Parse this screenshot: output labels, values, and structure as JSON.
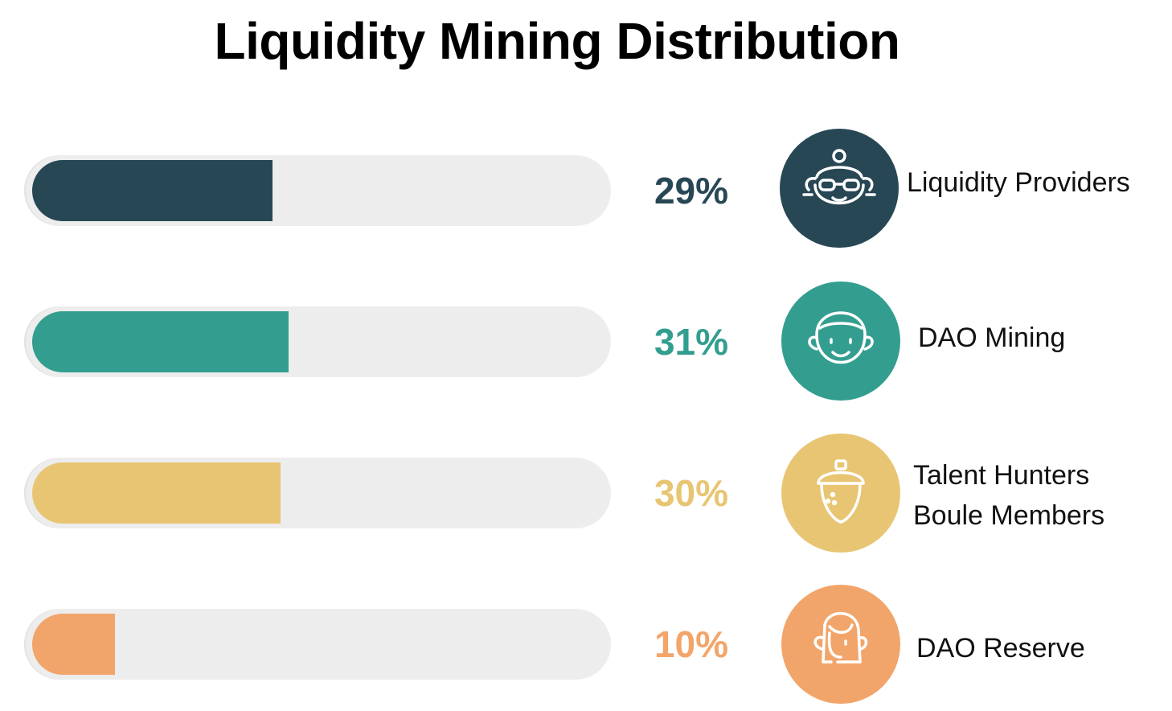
{
  "title": "Liquidity Mining Distribution",
  "chart_data": {
    "type": "bar",
    "title": "Liquidity Mining Distribution",
    "categories": [
      "Liquidity Providers",
      "DAO Mining",
      "Talent Hunters Boule Members",
      "DAO Reserve"
    ],
    "values": [
      29,
      31,
      30,
      10
    ],
    "unit": "%",
    "rows": [
      {
        "value": 29,
        "pct_label": "29%",
        "label_lines": [
          "Liquidity Providers"
        ],
        "color": "#284755",
        "icon": "person-with-glasses-icon"
      },
      {
        "value": 31,
        "pct_label": "31%",
        "label_lines": [
          "DAO Mining"
        ],
        "color": "#339e8f",
        "icon": "smiling-face-icon"
      },
      {
        "value": 30,
        "pct_label": "30%",
        "label_lines": [
          "Talent Hunters",
          "Boule Members"
        ],
        "color": "#e8c573",
        "icon": "acorn-icon"
      },
      {
        "value": 10,
        "pct_label": "10%",
        "label_lines": [
          "DAO Reserve"
        ],
        "color": "#f2a56a",
        "icon": "woman-profile-icon"
      }
    ]
  }
}
